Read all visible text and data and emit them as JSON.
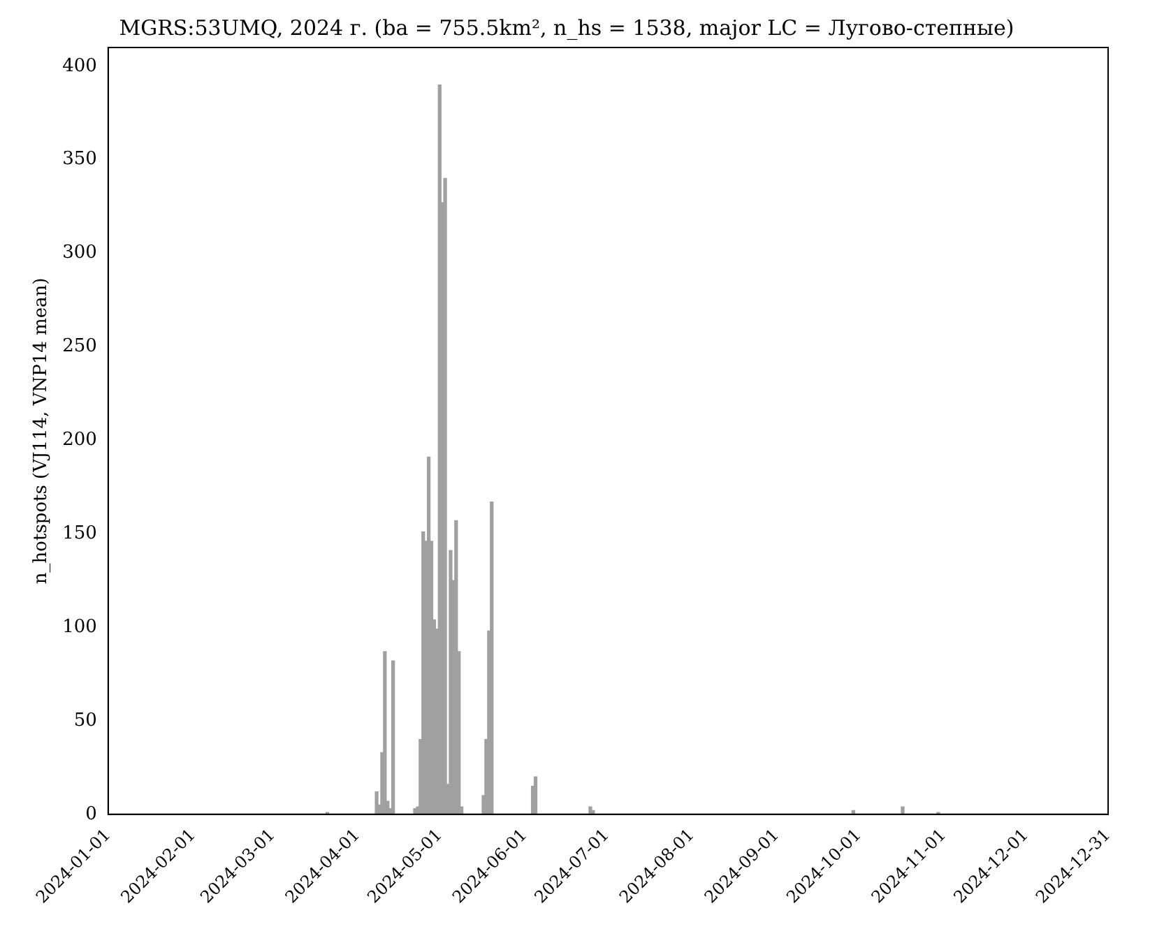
{
  "chart_data": {
    "type": "bar",
    "title": "MGRS:53UMQ, 2024 г. (ba = 755.5km², n_hs = 1538, major LC = Лугово-степные)",
    "ylabel": "n_hotspots (VJ114, VNP14 mean)",
    "x": [
      "2024-03-21",
      "2024-04-08",
      "2024-04-09",
      "2024-04-10",
      "2024-04-11",
      "2024-04-12",
      "2024-04-13",
      "2024-04-14",
      "2024-04-22",
      "2024-04-23",
      "2024-04-24",
      "2024-04-25",
      "2024-04-26",
      "2024-04-27",
      "2024-04-28",
      "2024-04-29",
      "2024-04-30",
      "2024-05-01",
      "2024-05-02",
      "2024-05-03",
      "2024-05-04",
      "2024-05-05",
      "2024-05-06",
      "2024-05-07",
      "2024-05-08",
      "2024-05-09",
      "2024-05-17",
      "2024-05-18",
      "2024-05-19",
      "2024-05-20",
      "2024-06-04",
      "2024-06-05",
      "2024-06-25",
      "2024-06-26",
      "2024-09-29",
      "2024-10-17",
      "2024-10-30"
    ],
    "values": [
      1,
      12,
      5,
      33,
      87,
      7,
      3,
      82,
      3,
      4,
      40,
      151,
      146,
      191,
      146,
      104,
      99,
      390,
      327,
      340,
      16,
      141,
      125,
      157,
      87,
      4,
      10,
      40,
      98,
      167,
      15,
      20,
      4,
      2,
      2,
      4,
      1
    ],
    "color": "#a0a0a0",
    "xlim": [
      "2024-01-01",
      "2024-12-31"
    ],
    "xticks": [
      "2024-01-01",
      "2024-02-01",
      "2024-03-01",
      "2024-04-01",
      "2024-05-01",
      "2024-06-01",
      "2024-07-01",
      "2024-08-01",
      "2024-09-01",
      "2024-10-01",
      "2024-11-01",
      "2024-12-01",
      "2024-12-31"
    ],
    "ylim": [
      0,
      410
    ],
    "yticks": [
      0,
      50,
      100,
      150,
      200,
      250,
      300,
      350,
      400
    ],
    "grid": false,
    "legend": false
  }
}
